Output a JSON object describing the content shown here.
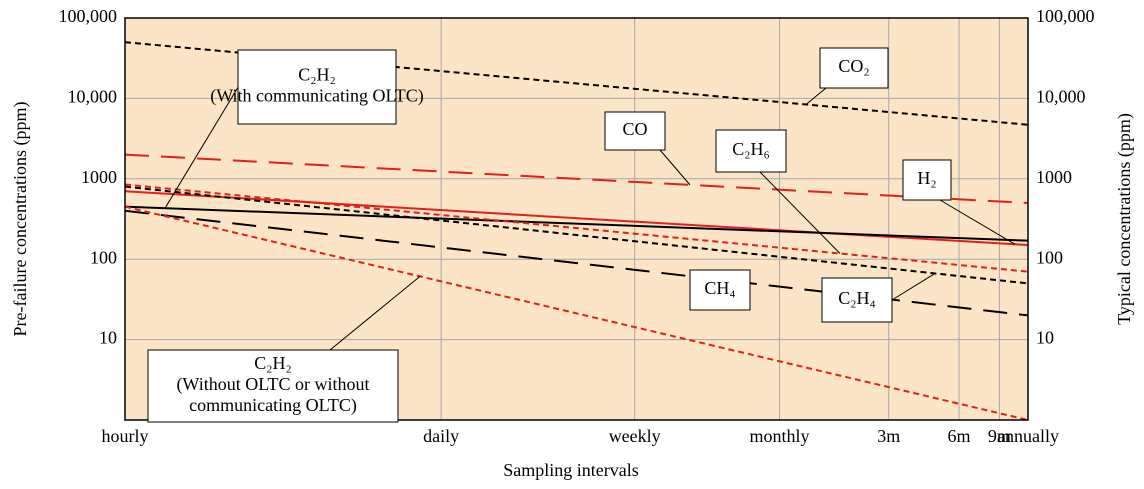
{
  "chart_data": {
    "type": "line",
    "log_x": true,
    "log_y": true,
    "grid": true,
    "background": "#fbe5c6",
    "x_label": "Sampling intervals",
    "y_label": "Pre-failure concentrations (ppm)",
    "y2_label": "Typical concentrations (ppm)",
    "x": [
      1,
      8760
    ],
    "xlim": [
      1,
      8760
    ],
    "xticks": [
      {
        "value": 1,
        "label": "hourly"
      },
      {
        "value": 24,
        "label": "daily"
      },
      {
        "value": 168,
        "label": "weekly"
      },
      {
        "value": 720,
        "label": "monthly"
      },
      {
        "value": 2160,
        "label": "3m"
      },
      {
        "value": 4380,
        "label": "6m"
      },
      {
        "value": 6570,
        "label": "9m"
      },
      {
        "value": 8760,
        "label": "annually"
      }
    ],
    "ylim": [
      1,
      100000
    ],
    "yticks": [
      10,
      100,
      1000,
      {
        "value": 10000,
        "label": "10,000"
      },
      {
        "value": 100000,
        "label": "100,000"
      }
    ],
    "y2lim": [
      1,
      100000
    ],
    "y2ticks": [
      10,
      100,
      1000,
      {
        "value": 10000,
        "label": "10,000"
      },
      {
        "value": 100000,
        "label": "100,000"
      }
    ],
    "series": [
      {
        "name": "CO₂",
        "color": "#000000",
        "dash": "short",
        "values": [
          50000,
          4700
        ]
      },
      {
        "name": "CO",
        "color": "#e0201c",
        "dash": "long",
        "values": [
          2000,
          500
        ]
      },
      {
        "name": "H₂",
        "color": "#e0201c",
        "dash": "solid",
        "values": [
          700,
          150
        ]
      },
      {
        "name": "C₂H₂",
        "note": [
          "(With communicating OLTC)"
        ],
        "color": "#000000",
        "dash": "solid",
        "values": [
          450,
          170
        ]
      },
      {
        "name": "C₂H₆",
        "color": "#e0201c",
        "dash": "short",
        "values": [
          850,
          70
        ]
      },
      {
        "name": "C₂H₄",
        "color": "#000000",
        "dash": "short",
        "values": [
          800,
          50
        ]
      },
      {
        "name": "CH₄",
        "color": "#000000",
        "dash": "long",
        "values": [
          400,
          20
        ]
      },
      {
        "name": "C₂H₂",
        "note": [
          "(Without OLTC or without",
          "communicating OLTC)"
        ],
        "color": "#e0201c",
        "dash": "short",
        "values": [
          450,
          1
        ]
      }
    ]
  }
}
